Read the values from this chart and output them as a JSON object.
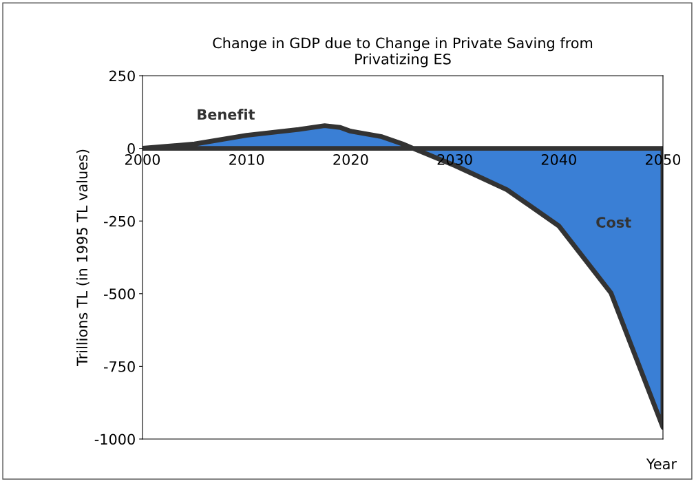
{
  "chart_data": {
    "type": "area",
    "title": "Change in GDP due to Change in Private Saving from\nPrivatizing ES",
    "xlabel": "Year",
    "ylabel": "Trillions TL (in 1995 TL values)",
    "x": [
      2000,
      2005,
      2010,
      2015,
      2017.5,
      2019,
      2020,
      2023,
      2025,
      2026,
      2030,
      2035,
      2040,
      2045,
      2050
    ],
    "series": [
      {
        "color": "#3a7fd5",
        "values": [
          0,
          15,
          45,
          65,
          78,
          72,
          59,
          40,
          15,
          0,
          -59,
          -142,
          -267,
          -497,
          -960
        ]
      }
    ],
    "xlim": [
      2000,
      2050
    ],
    "xticks": [
      2000,
      2010,
      2020,
      2030,
      2040,
      2050
    ],
    "ylim": [
      -1000,
      250
    ],
    "yticks": [
      250,
      0,
      -250,
      -500,
      -750,
      -1000
    ],
    "annotations": [
      "Benefit",
      "Cost"
    ],
    "grid": false,
    "legend": false
  }
}
